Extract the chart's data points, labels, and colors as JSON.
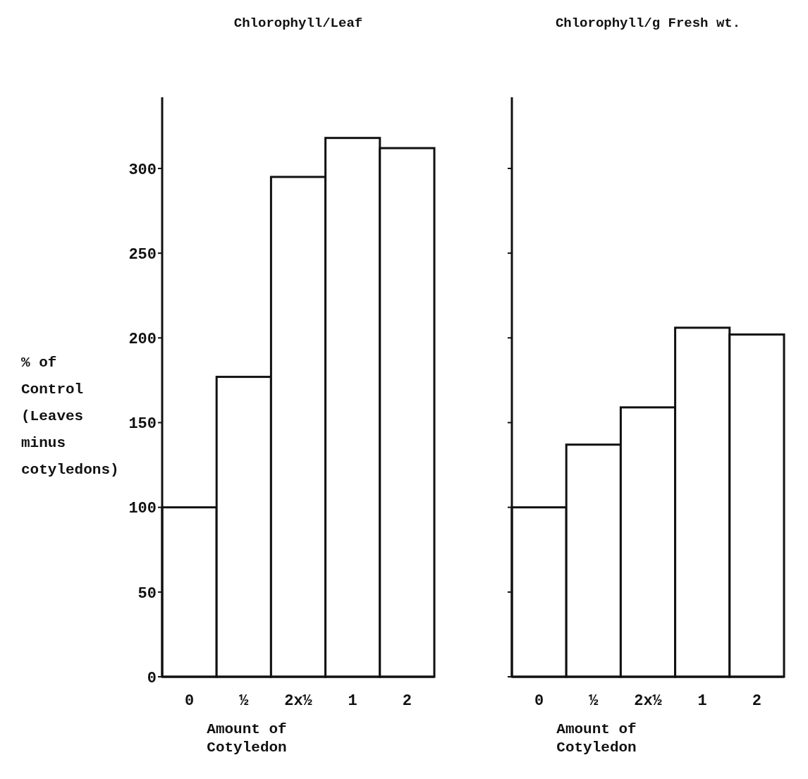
{
  "chart_data": [
    {
      "type": "bar",
      "title": "Chlorophyll/Leaf",
      "categories": [
        "0",
        "½",
        "2x½",
        "1",
        "2"
      ],
      "values": [
        100,
        177,
        295,
        318,
        312
      ],
      "color": "#ffffff",
      "ylim": [
        0,
        342
      ],
      "yticks": [
        0,
        50,
        100,
        150,
        200,
        250,
        300
      ],
      "xlabel": "Amount of Cotyledon",
      "ylabel": "% of Control (Leaves minus cotyledons)"
    },
    {
      "type": "bar",
      "title": "Chlorophyll/g Fresh wt.",
      "categories": [
        "0",
        "½",
        "2x½",
        "1",
        "2"
      ],
      "values": [
        100,
        137,
        159,
        206,
        202
      ],
      "color": "#ffffff",
      "ylim": [
        0,
        342
      ],
      "yticks": [
        0,
        50,
        100,
        150,
        200,
        250,
        300
      ],
      "xlabel": "Amount of Cotyledon",
      "tick_labels": "x"
    }
  ]
}
